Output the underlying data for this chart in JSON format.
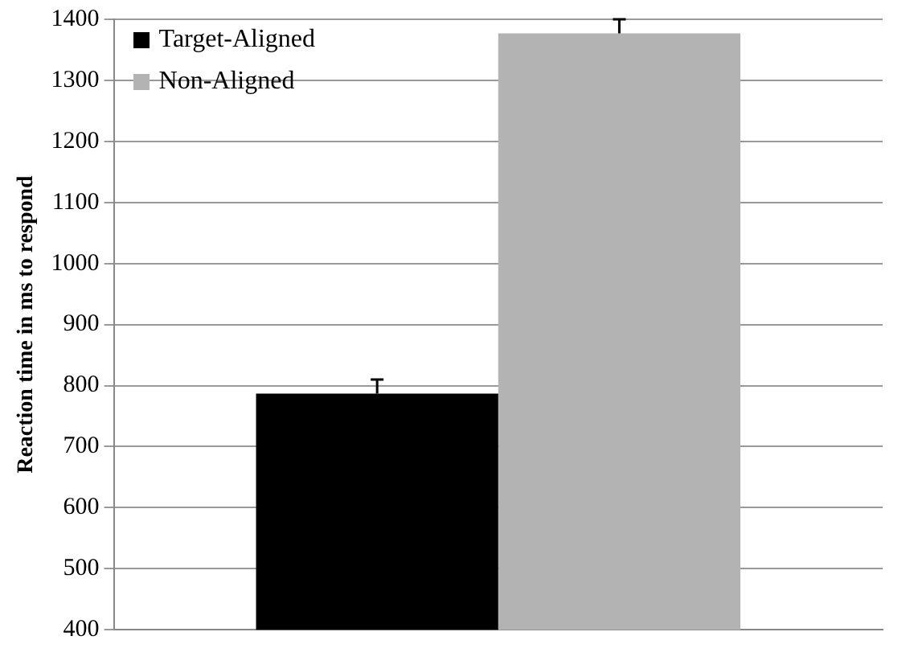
{
  "chart_data": {
    "type": "bar",
    "ylabel": "Reaction time in ms to respond",
    "categories": [
      null
    ],
    "series": [
      {
        "name": "Target-Aligned",
        "color": "#000000",
        "values": [
          787
        ],
        "errors": [
          [
            787,
            810
          ]
        ]
      },
      {
        "name": "Non-Aligned",
        "color": "#b3b3b3",
        "values": [
          1377
        ],
        "errors": [
          [
            1377,
            1400
          ]
        ]
      }
    ],
    "ylim": [
      400,
      1400
    ],
    "yticks": [
      400,
      500,
      600,
      700,
      800,
      900,
      1000,
      1100,
      1200,
      1300,
      1400
    ],
    "grid": "y",
    "legend": "top left"
  }
}
